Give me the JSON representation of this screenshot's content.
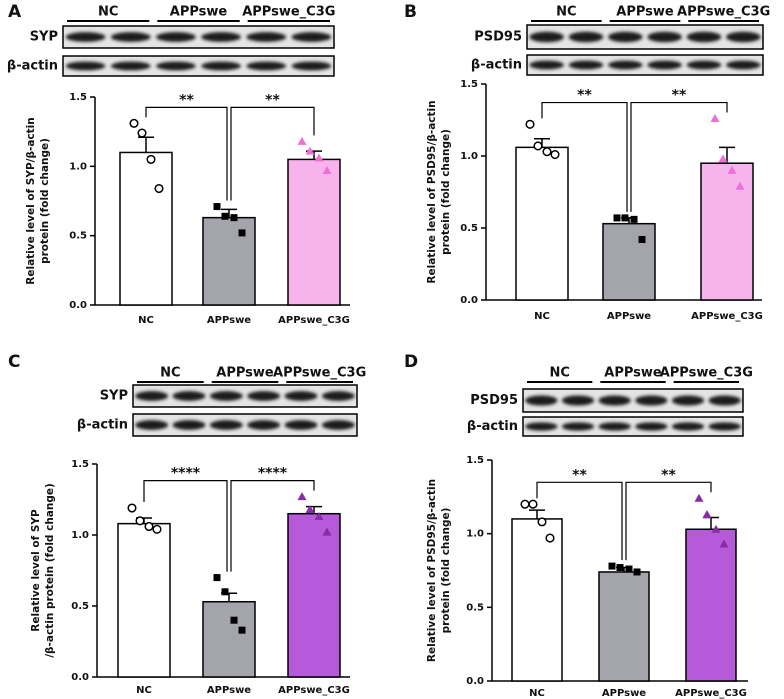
{
  "chart_data": [
    {
      "type": "bar",
      "panel": "A",
      "blot": {
        "groups": [
          "NC",
          "APPswe",
          "APPswe_C3G"
        ],
        "rows": [
          "SYP",
          "β-actin"
        ]
      },
      "y_label": [
        "Relative level of SYP/β-actin",
        "protein (fold change)"
      ],
      "categories": [
        "NC",
        "APPswe",
        "APPswe_C3G"
      ],
      "values": [
        1.1,
        0.63,
        1.05
      ],
      "errors": [
        0.11,
        0.06,
        0.06
      ],
      "points": [
        [
          1.31,
          1.24,
          1.05,
          0.84
        ],
        [
          0.71,
          0.64,
          0.63,
          0.52
        ],
        [
          1.18,
          1.11,
          1.06,
          0.97
        ]
      ],
      "colors": [
        "#ffffff",
        "#a4a4ac",
        "#f7b3ec"
      ],
      "point_color": "#f06fd6",
      "significance": [
        "**",
        "**"
      ],
      "ylim": [
        0,
        1.5
      ],
      "yticks": [
        {
          "value": 0,
          "label": "0.0"
        },
        0.5,
        {
          "value": 1,
          "label": "1.0"
        },
        1.5
      ]
    },
    {
      "type": "bar",
      "panel": "B",
      "blot": {
        "groups": [
          "NC",
          "APPswe",
          "APPswe_C3G"
        ],
        "rows": [
          "PSD95",
          "β-actin"
        ]
      },
      "y_label": [
        "Relative level of PSD95/β-actin",
        "protein (fold change)"
      ],
      "categories": [
        "NC",
        "APPswe",
        "APPswe_C3G"
      ],
      "values": [
        1.06,
        0.53,
        0.95
      ],
      "errors": [
        0.06,
        0.04,
        0.11
      ],
      "points": [
        [
          1.22,
          1.07,
          1.03,
          1.01
        ],
        [
          0.57,
          0.57,
          0.56,
          0.42
        ],
        [
          1.26,
          0.98,
          0.9,
          0.79
        ]
      ],
      "colors": [
        "#ffffff",
        "#a4a4ac",
        "#f7b3ec"
      ],
      "point_color": "#f06fd6",
      "significance": [
        "**",
        "**"
      ],
      "ylim": [
        0,
        1.5
      ],
      "yticks": [
        {
          "value": 0,
          "label": "0.0"
        },
        0.5,
        {
          "value": 1,
          "label": "1.0"
        },
        1.5
      ]
    },
    {
      "type": "bar",
      "panel": "C",
      "blot": {
        "groups": [
          "NC",
          "APPswe",
          "APPswe_C3G"
        ],
        "rows": [
          "SYP",
          "β-actin"
        ]
      },
      "y_label": [
        "Relative level of SYP",
        "/β-actin protein (fold change)"
      ],
      "categories": [
        "NC",
        "APPswe",
        "APPswe_C3G"
      ],
      "values": [
        1.08,
        0.53,
        1.15
      ],
      "errors": [
        0.04,
        0.06,
        0.05
      ],
      "points": [
        [
          1.19,
          1.1,
          1.06,
          1.04
        ],
        [
          0.7,
          0.6,
          0.4,
          0.33
        ],
        [
          1.27,
          1.18,
          1.13,
          1.02
        ]
      ],
      "colors": [
        "#ffffff",
        "#a4a4ac",
        "#b55ad9"
      ],
      "point_color": "#8b2aa8",
      "significance": [
        "****",
        "****"
      ],
      "ylim": [
        0,
        1.5
      ],
      "yticks": [
        {
          "value": 0,
          "label": "0.0"
        },
        0.5,
        {
          "value": 1,
          "label": "1.0"
        },
        1.5
      ]
    },
    {
      "type": "bar",
      "panel": "D",
      "blot": {
        "groups": [
          "NC",
          "APPswe",
          "APPswe_C3G"
        ],
        "rows": [
          "PSD95",
          "β-actin"
        ]
      },
      "y_label": [
        "Relative level of PSD95/β-actin",
        "protein (fold change)"
      ],
      "categories": [
        "NC",
        "APPswe",
        "APPswe_C3G"
      ],
      "values": [
        1.1,
        0.74,
        1.03
      ],
      "errors": [
        0.06,
        0.03,
        0.08
      ],
      "points": [
        [
          1.2,
          1.2,
          1.08,
          0.97
        ],
        [
          0.78,
          0.77,
          0.76,
          0.74
        ],
        [
          1.24,
          1.13,
          1.03,
          0.93
        ]
      ],
      "colors": [
        "#ffffff",
        "#a4a4ac",
        "#b55ad9"
      ],
      "point_color": "#8b2aa8",
      "significance": [
        "**",
        "**"
      ],
      "ylim": [
        0,
        1.5
      ],
      "yticks": [
        {
          "value": 0,
          "label": "0.0"
        },
        0.5,
        {
          "value": 1,
          "label": "1.0"
        },
        1.5
      ]
    }
  ]
}
